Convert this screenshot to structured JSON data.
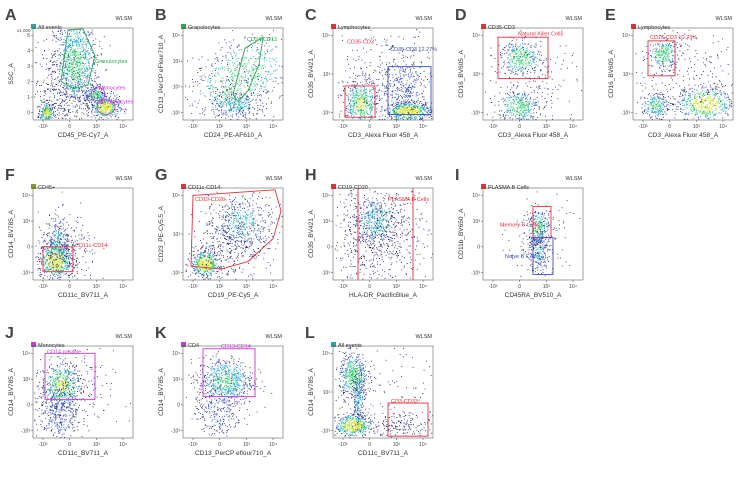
{
  "colors": {
    "axis": "#444444",
    "gate_red": "#e8303a",
    "gate_blue": "#3b4fc6",
    "gate_green": "#2aa84a",
    "gate_magenta": "#c23ccf",
    "density_scale": [
      "#1b1f6e",
      "#2a45c6",
      "#22a6c9",
      "#3ccf75",
      "#d6e83a",
      "#f5b320"
    ]
  },
  "chart_data": [
    {
      "type": "scatter",
      "panel": "A",
      "title": "All events",
      "title_color": "#2aa89a",
      "instrument": "WLSM",
      "xlabel": "CD45_PE-Cy7_A",
      "ylabel": "SSC_A",
      "y_multiplier": "x1,000",
      "xticks": [
        "-10³",
        "0",
        "10³",
        "10⁴"
      ],
      "yticks": [
        "0",
        "1",
        "2",
        "3",
        "4",
        "5"
      ],
      "ylim": [
        0,
        5
      ],
      "gates": [
        {
          "label": "Granulocytes",
          "color": "#2aa84a"
        },
        {
          "label": "Monocytes",
          "color": "#c23ccf"
        },
        {
          "label": "Lymphocytes",
          "color": "#c23ccf"
        }
      ]
    },
    {
      "type": "scatter",
      "panel": "B",
      "title": "Granulocytes",
      "title_color": "#2aa84a",
      "instrument": "WLSM",
      "xlabel": "CD24_PE-AF610_A",
      "ylabel": "CD13_PerCP eFlour710_A",
      "xticks": [
        "-10²",
        "10²",
        "10³",
        "10⁴"
      ],
      "yticks": [
        "-10²",
        "10²",
        "10³",
        "10⁴"
      ],
      "gates": [
        {
          "label": "CD24-CD13",
          "color": "#2aa84a"
        }
      ]
    },
    {
      "type": "scatter",
      "panel": "C",
      "title": "Lymphocytes",
      "title_color": "#e8303a",
      "instrument": "WLSM",
      "xlabel": "CD3_Alexa Fluor 458_A",
      "ylabel": "CD35_BV421_A",
      "xticks": [
        "-10³",
        "0",
        "10³",
        "10⁴"
      ],
      "yticks": [
        "-10³",
        "10³",
        "10⁴"
      ],
      "gates": [
        {
          "label": "CD35-CD3",
          "color": "#e8303a"
        },
        {
          "label": "CD35-CD3 12.27%",
          "color": "#3b4fc6"
        }
      ]
    },
    {
      "type": "scatter",
      "panel": "D",
      "title": "CD35-CD3",
      "title_color": "#e8303a",
      "instrument": "WLSM",
      "xlabel": "CD3_Alexa Fluor 458_A",
      "ylabel": "CD16_BV605_A",
      "xticks": [
        "-10³",
        "0",
        "10³",
        "10⁴"
      ],
      "yticks": [
        "-10³",
        "10³",
        "10⁴"
      ],
      "gates": [
        {
          "label": "Natural Killer Cells",
          "color": "#e8303a"
        }
      ]
    },
    {
      "type": "scatter",
      "panel": "E",
      "title": "Lymphocytes",
      "title_color": "#e8303a",
      "instrument": "WLSM",
      "xlabel": "CD3_Alexa Fluor 458_A",
      "ylabel": "CD16_BV605_A",
      "xticks": [
        "-10³",
        "0",
        "10³",
        "10⁴"
      ],
      "yticks": [
        "-10³",
        "10³",
        "10⁴"
      ],
      "gates": [
        {
          "label": "CD16-CD3 10.73%",
          "color": "#e8303a"
        }
      ]
    },
    {
      "type": "scatter",
      "panel": "F",
      "title": "CD45+",
      "title_color": "#8a9a1c",
      "instrument": "WLSM",
      "xlabel": "CD11c_BV711_A",
      "ylabel": "CD14_BV785_A",
      "xticks": [
        "-10³",
        "0",
        "10³",
        "10⁴"
      ],
      "yticks": [
        "-10³",
        "0",
        "10³",
        "10⁴"
      ],
      "gates": [
        {
          "label": "CD11c-CD14-",
          "color": "#e8303a"
        }
      ]
    },
    {
      "type": "scatter",
      "panel": "G",
      "title": "CD11c-CD14-",
      "title_color": "#e8303a",
      "instrument": "WLSM",
      "xlabel": "CD19_PE-Cy5_A",
      "ylabel": "CD23_PE-Cy5.5_A",
      "xticks": [
        "-10²",
        "10²",
        "10³",
        "10⁴"
      ],
      "yticks": [
        "-10²",
        "10³",
        "10⁴"
      ],
      "gates": [
        {
          "label": "CD19-CD20",
          "color": "#e8303a"
        }
      ]
    },
    {
      "type": "scatter",
      "panel": "H",
      "title": "CD19-CD20",
      "title_color": "#e8303a",
      "instrument": "WLSM",
      "xlabel": "HLA-DR_PacificBlue_A",
      "ylabel": "CD35_BV421_A",
      "xticks": [
        "-10³",
        "0",
        "10³",
        "10⁴"
      ],
      "yticks": [
        "-10³",
        "0",
        "10³",
        "10⁴"
      ],
      "gates": [
        {
          "label": "PLASMA B Cells",
          "color": "#e8303a"
        }
      ]
    },
    {
      "type": "scatter",
      "panel": "I",
      "title": "PLASMA B Cells",
      "title_color": "#e8303a",
      "instrument": "WLSM",
      "xlabel": "CD45RA_BV510_A",
      "ylabel": "CD11b_BV650_A",
      "xticks": [
        "-10³",
        "0",
        "10³",
        "10⁴"
      ],
      "yticks": [
        "-10³",
        "0",
        "10³",
        "10⁴"
      ],
      "gates": [
        {
          "label": "Memory B Cells",
          "color": "#e8303a"
        },
        {
          "label": "Naive B Cells",
          "color": "#3b4fc6"
        }
      ]
    },
    {
      "type": "scatter",
      "panel": "J",
      "title": "Monocytes",
      "title_color": "#c23ccf",
      "instrument": "WLSM",
      "xlabel": "CD11c_BV711_A",
      "ylabel": "CD14_BV785_A",
      "xticks": [
        "-10³",
        "0",
        "10³",
        "10⁴"
      ],
      "yticks": [
        "-10³",
        "0",
        "10³",
        "10⁴"
      ],
      "gates": [
        {
          "label": "CD14 positive",
          "color": "#c23ccf"
        }
      ]
    },
    {
      "type": "scatter",
      "panel": "K",
      "title": "CD4",
      "title_color": "#c23ccf",
      "instrument": "WLSM",
      "xlabel": "CD13_PerCP eflour710_A",
      "ylabel": "CD14_BV785_A",
      "xticks": [
        "-10³",
        "0",
        "10³",
        "10⁴"
      ],
      "yticks": [
        "-10³",
        "0",
        "10³",
        "10⁴"
      ],
      "gates": [
        {
          "label": "CD13-CD14",
          "color": "#c23ccf"
        }
      ]
    },
    {
      "type": "scatter",
      "panel": "L",
      "title": "All events",
      "title_color": "#2aa89a",
      "instrument": "WLSM",
      "xlabel": "CD11c_BV711_A",
      "ylabel": "CD14_BV785_A",
      "xticks": [
        "-10³",
        "0",
        "10³",
        "10⁴"
      ],
      "yticks": [
        "-10³",
        "10³",
        "10⁴"
      ],
      "gates": [
        {
          "label": "CD3-CD33",
          "color": "#e8303a"
        }
      ]
    }
  ]
}
